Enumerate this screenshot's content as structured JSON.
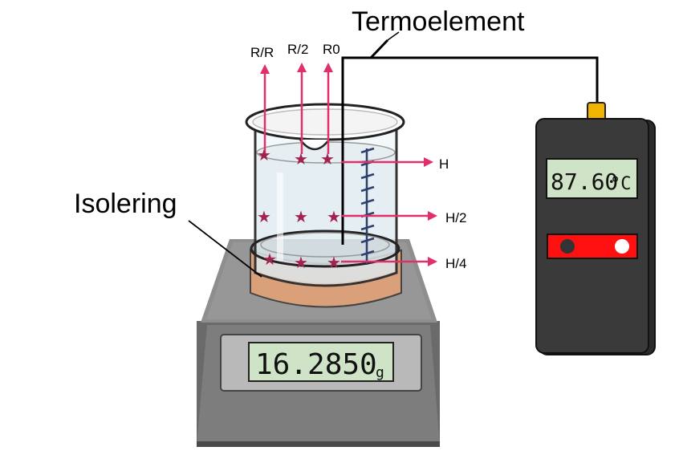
{
  "labels": {
    "thermocouple": "Termoelement",
    "insulation": "Isolering"
  },
  "radial_labels": [
    "R/R",
    "R/2",
    "R0"
  ],
  "height_labels": [
    "H",
    "H/2",
    "H/4"
  ],
  "scale_display": {
    "value": "16.2850",
    "unit": "g"
  },
  "thermometer_display": {
    "value": "87.60",
    "unit": "°C"
  },
  "colors": {
    "arrow": "#e0306a",
    "star": "#a3224e",
    "insulation": "#d9a07a",
    "scale_body": "#6f6f6f",
    "lcd_bg": "#cfe3c6",
    "thermometer_body": "#3a3a3a",
    "probe_tip": "#f0b400",
    "switch_red": "#ff1010"
  }
}
